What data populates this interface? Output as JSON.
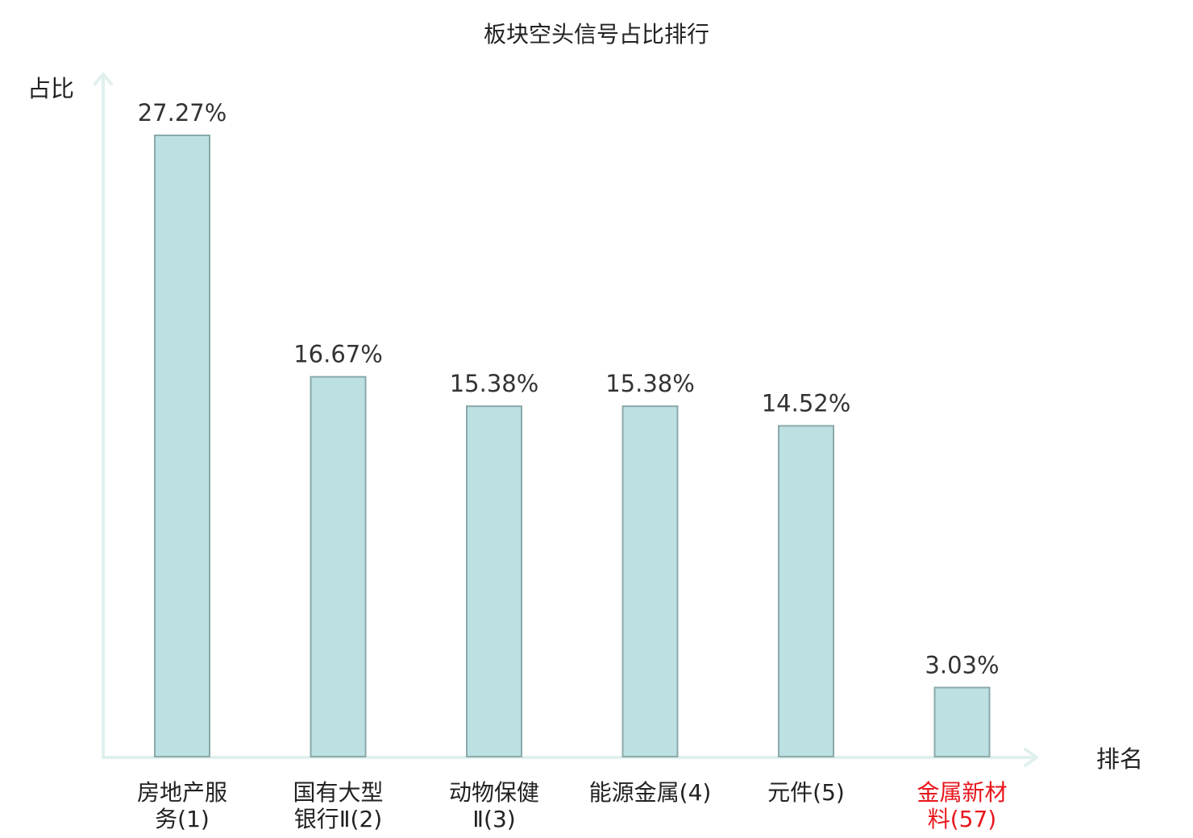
{
  "chart_data": {
    "type": "bar",
    "title": "板块空头信号占比排行",
    "ylabel": "占比",
    "xlabel": "排名",
    "ylim": [
      0,
      30
    ],
    "categories": [
      [
        "房地产服",
        "务(1)"
      ],
      [
        "国有大型",
        "银行Ⅱ(2)"
      ],
      [
        "动物保健",
        "Ⅱ(3)"
      ],
      [
        "能源金属(4)"
      ],
      [
        "元件(5)"
      ],
      [
        "金属新材",
        "料(57)"
      ]
    ],
    "values": [
      27.27,
      16.67,
      15.38,
      15.38,
      14.52,
      3.03
    ],
    "value_labels": [
      "27.27%",
      "16.67%",
      "15.38%",
      "15.38%",
      "14.52%",
      "3.03%"
    ],
    "highlight_index": 5,
    "colors": {
      "bar_fill": "#bde0e2",
      "bar_stroke": "#8aa9aa",
      "axis": "#e0f0ee",
      "highlight_text": "#e8161c"
    },
    "grid": false
  }
}
